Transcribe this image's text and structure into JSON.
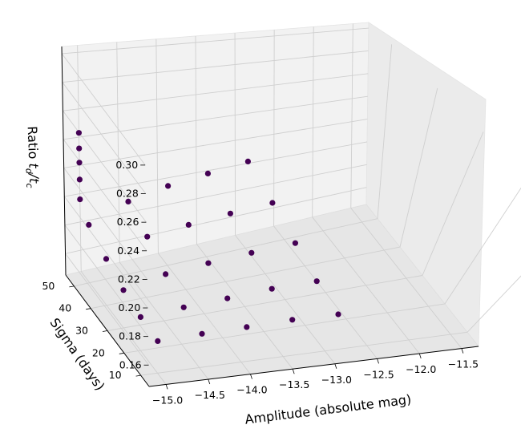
{
  "chart_data": {
    "type": "scatter3d",
    "xlabel": "Amplitude (absolute mag)",
    "ylabel": "Sigma (days)",
    "zlabel": "Ratio t_d/t_c",
    "zlabel_main": "Ratio ",
    "zlabel_t1": "t",
    "zlabel_sub1": "d",
    "zlabel_slash": "/t",
    "zlabel_sub2": "c",
    "x_ticks": [
      "−15.0",
      "−14.5",
      "−14.0",
      "−13.5",
      "−13.0",
      "−12.5",
      "−12.0",
      "−11.5"
    ],
    "x_tick_values": [
      -15.0,
      -14.5,
      -14.0,
      -13.5,
      -13.0,
      -12.5,
      -12.0,
      -11.5
    ],
    "y_ticks": [
      "10",
      "20",
      "30",
      "40",
      "50"
    ],
    "y_tick_values": [
      10,
      20,
      30,
      40,
      50
    ],
    "z_ticks": [
      "0.16",
      "0.18",
      "0.20",
      "0.22",
      "0.24",
      "0.26",
      "0.28",
      "0.30"
    ],
    "z_tick_values": [
      0.16,
      0.18,
      0.2,
      0.22,
      0.24,
      0.26,
      0.28,
      0.3
    ],
    "xlim": [
      -15.2,
      -11.3
    ],
    "ylim": [
      5,
      55
    ],
    "zlim": [
      0.145,
      0.305
    ],
    "marker_color": "#440154",
    "pane_color": "#f2f2f2",
    "grid": true,
    "points": [
      [
        -15.0,
        10,
        0.168
      ],
      [
        -15.0,
        20,
        0.169
      ],
      [
        -15.0,
        30,
        0.172
      ],
      [
        -15.0,
        40,
        0.178
      ],
      [
        -15.0,
        50,
        0.186
      ],
      [
        -15.0,
        55,
        0.196
      ],
      [
        -15.0,
        55,
        0.21
      ],
      [
        -15.0,
        55,
        0.222
      ],
      [
        -15.0,
        55,
        0.232
      ],
      [
        -15.0,
        55,
        0.243
      ],
      [
        -14.5,
        10,
        0.171
      ],
      [
        -14.5,
        20,
        0.173
      ],
      [
        -14.5,
        30,
        0.18
      ],
      [
        -14.5,
        40,
        0.19
      ],
      [
        -14.5,
        50,
        0.198
      ],
      [
        -14.0,
        10,
        0.174
      ],
      [
        -14.0,
        20,
        0.177
      ],
      [
        -14.0,
        30,
        0.185
      ],
      [
        -14.0,
        40,
        0.195
      ],
      [
        -14.0,
        50,
        0.205
      ],
      [
        -13.5,
        10,
        0.178
      ],
      [
        -13.5,
        20,
        0.182
      ],
      [
        -13.5,
        30,
        0.19
      ],
      [
        -13.5,
        40,
        0.2
      ],
      [
        -13.5,
        50,
        0.21
      ],
      [
        -13.0,
        10,
        0.181
      ],
      [
        -13.0,
        20,
        0.186
      ],
      [
        -13.0,
        30,
        0.195
      ],
      [
        -13.0,
        40,
        0.205
      ],
      [
        -13.0,
        50,
        0.215
      ]
    ]
  }
}
